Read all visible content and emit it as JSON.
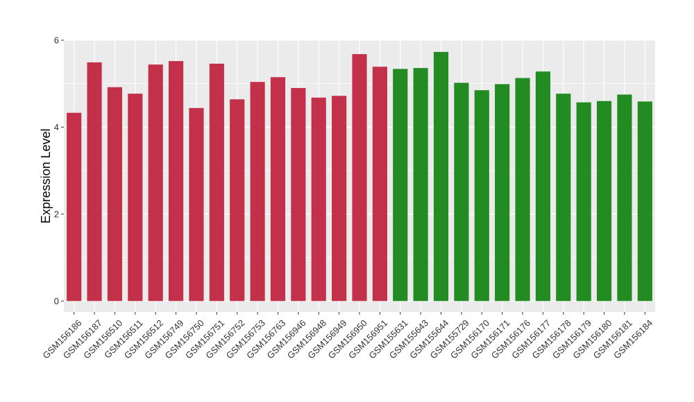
{
  "chart_data": {
    "type": "bar",
    "ylabel": "Expression Level",
    "xlabel": "",
    "title": "",
    "ylim": [
      -0.25,
      6.0
    ],
    "yticks": [
      0,
      2,
      4,
      6
    ],
    "grid": true,
    "legend": "none",
    "colors": {
      "group1": "#c3304a",
      "group2": "#228b22",
      "panel_bg": "#ebebeb",
      "grid": "#ffffff"
    },
    "categories": [
      "GSM156186",
      "GSM156187",
      "GSM156510",
      "GSM156511",
      "GSM156512",
      "GSM156749",
      "GSM156750",
      "GSM156751",
      "GSM156752",
      "GSM156753",
      "GSM156763",
      "GSM156946",
      "GSM156948",
      "GSM156949",
      "GSM156950",
      "GSM156951",
      "GSM155631",
      "GSM155643",
      "GSM155644",
      "GSM155729",
      "GSM156170",
      "GSM156171",
      "GSM156176",
      "GSM156177",
      "GSM156178",
      "GSM156179",
      "GSM156180",
      "GSM156181",
      "GSM156184"
    ],
    "values": [
      4.33,
      5.49,
      4.92,
      4.77,
      5.44,
      5.52,
      4.44,
      5.46,
      4.64,
      5.04,
      5.15,
      4.9,
      4.68,
      4.72,
      5.68,
      5.39,
      5.34,
      5.36,
      5.73,
      5.02,
      4.85,
      4.99,
      5.13,
      5.28,
      4.77,
      4.57,
      4.6,
      4.75,
      4.59
    ],
    "groups": [
      1,
      1,
      1,
      1,
      1,
      1,
      1,
      1,
      1,
      1,
      1,
      1,
      1,
      1,
      1,
      1,
      2,
      2,
      2,
      2,
      2,
      2,
      2,
      2,
      2,
      2,
      2,
      2,
      2
    ]
  }
}
